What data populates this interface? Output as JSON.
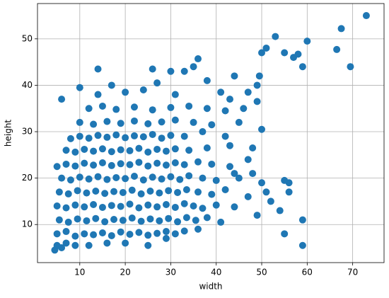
{
  "chart_data": {
    "type": "scatter",
    "xlabel": "width",
    "ylabel": "height",
    "color": "#1f77b4",
    "grid": true,
    "xlim": [
      0.7,
      76.9
    ],
    "ylim": [
      1.8,
      57.6
    ],
    "xticks": [
      10,
      20,
      30,
      40,
      50,
      60,
      70
    ],
    "yticks": [
      10,
      20,
      30,
      40,
      50
    ],
    "x": [
      4.5,
      5,
      6,
      7,
      9,
      12,
      16,
      20,
      25,
      29,
      5,
      7,
      9,
      11,
      13,
      15,
      17,
      19,
      21,
      23,
      25,
      27,
      29,
      31,
      33,
      36,
      5.5,
      7.5,
      9.5,
      11.5,
      13.5,
      15.5,
      17.5,
      19.5,
      21.5,
      23.5,
      25.5,
      27.5,
      29.5,
      31.5,
      33.5,
      35.5,
      38,
      41,
      5,
      7,
      9,
      11,
      13,
      15,
      17,
      19,
      21,
      23,
      25,
      27,
      29,
      31,
      33,
      35,
      37,
      40,
      44,
      5.5,
      7.5,
      9.5,
      11.5,
      13.5,
      15.5,
      17.5,
      19.5,
      21.5,
      23.5,
      25.5,
      27.5,
      29.5,
      31.5,
      33.5,
      36,
      39,
      42,
      47,
      56,
      6,
      8,
      10,
      12,
      14,
      16,
      18,
      20,
      22,
      24,
      26,
      28,
      30,
      32,
      34,
      37,
      40,
      44,
      50,
      5,
      7,
      9,
      11,
      13,
      15,
      17,
      19,
      21,
      23,
      25,
      27,
      29,
      31,
      33,
      36,
      39,
      43,
      47,
      7,
      9,
      11,
      13,
      15,
      17,
      19,
      21,
      23,
      25,
      27,
      29,
      31,
      34,
      38,
      43,
      48,
      8,
      10,
      12,
      14,
      16,
      18,
      20,
      22,
      24,
      26,
      28,
      30,
      33,
      37,
      42,
      10,
      13,
      16,
      19,
      22,
      25,
      28,
      31,
      35,
      39,
      45,
      12,
      15,
      18,
      22,
      26,
      30,
      34,
      38,
      42,
      46,
      14,
      17,
      20,
      24,
      27,
      31,
      33,
      35,
      36,
      38,
      41,
      44,
      49,
      10,
      6,
      14,
      26,
      30,
      50,
      51,
      53,
      55,
      57,
      59,
      60,
      58,
      66.5,
      67.5,
      69.5,
      73,
      49.5,
      55,
      59,
      59,
      54,
      52,
      49,
      51,
      56,
      55,
      48,
      50,
      45,
      43,
      47,
      49
    ],
    "values": [
      4.5,
      5.5,
      5,
      6,
      5.5,
      5.5,
      6,
      6,
      5.5,
      7,
      8,
      8.5,
      7.5,
      8,
      7.8,
      8.2,
      7.6,
      8.4,
      7.9,
      8.3,
      7.7,
      8.1,
      8.5,
      8,
      8.6,
      9,
      11,
      10.5,
      11.2,
      10.8,
      11.3,
      10.6,
      11.1,
      10.9,
      11.4,
      10.7,
      11.2,
      10.8,
      11.3,
      10.6,
      11.5,
      10.9,
      11.5,
      10.5,
      14,
      13.6,
      14.2,
      13.8,
      14.3,
      13.7,
      14.1,
      13.9,
      14.4,
      13.6,
      14.2,
      13.8,
      14.3,
      13.7,
      14.5,
      14,
      13.5,
      14.2,
      13.8,
      17,
      16.6,
      17.3,
      16.8,
      17.2,
      16.7,
      17.1,
      16.9,
      17.4,
      16.6,
      17.2,
      16.8,
      17.3,
      16.9,
      17.5,
      17,
      16.5,
      17.5,
      16,
      19,
      20,
      19.6,
      20.2,
      19.8,
      20.3,
      19.7,
      20.1,
      19.9,
      20.4,
      19.6,
      20.2,
      19.8,
      20.3,
      19.7,
      20.5,
      20,
      19.5,
      21,
      19,
      22.5,
      23,
      22.6,
      23.2,
      22.8,
      23.3,
      22.7,
      23.1,
      22.9,
      23.4,
      22.6,
      23.2,
      22.8,
      23.3,
      22.9,
      23.5,
      23,
      22.5,
      24,
      26,
      25.6,
      26.2,
      25.8,
      26.3,
      25.7,
      26.1,
      25.9,
      26.4,
      25.6,
      26.2,
      25.8,
      26.3,
      26,
      26.5,
      27,
      26.5,
      28.5,
      29,
      28.6,
      29.2,
      28.8,
      29.3,
      28.7,
      29.1,
      28.9,
      29.4,
      28.6,
      29.2,
      29,
      30,
      29,
      32,
      31.6,
      32.2,
      31.8,
      32.3,
      31.7,
      32.1,
      32.5,
      32,
      31.5,
      32,
      35,
      35.5,
      34.8,
      35.3,
      34.7,
      35.2,
      35.5,
      35,
      34.5,
      35,
      38,
      40,
      38.5,
      39,
      40.5,
      38,
      43,
      44,
      45.7,
      41,
      38.5,
      42,
      40,
      39.5,
      37,
      43.5,
      43.5,
      43,
      47,
      48,
      50.5,
      47,
      46,
      44,
      49.5,
      46.7,
      47.7,
      52.2,
      44,
      55,
      42,
      8,
      5.5,
      11,
      13,
      15,
      12,
      17,
      17,
      19.5,
      21,
      30.5,
      20,
      37,
      38.5,
      36.5
    ]
  }
}
